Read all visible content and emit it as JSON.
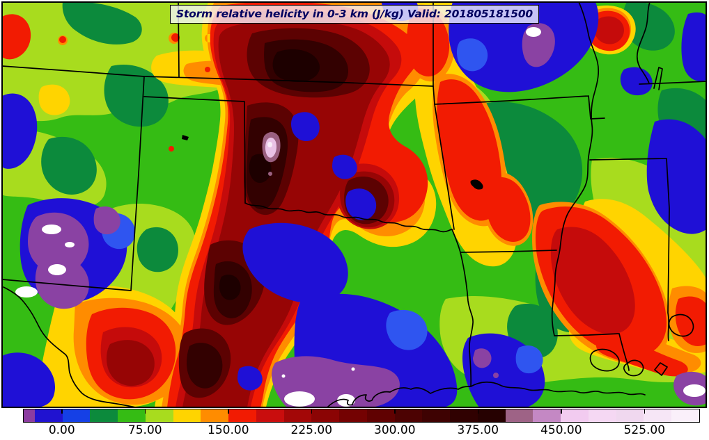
{
  "figure": {
    "title": "Storm relative helicity in 0-3 km (J/kg) Valid: 201805181500",
    "field": "Storm relative helicity in 0-3 km",
    "units": "J/kg",
    "valid_time": "201805181500"
  },
  "palette": {
    "frame": "#000000",
    "border_lines": "#000000",
    "base_green": "#35BC14",
    "ygreen": "#A8DC1E",
    "dkgreen": "#0C8A3C",
    "yellow": "#FFD400",
    "orange": "#FF8C00",
    "red": "#F21B02",
    "red_dark1": "#C50B0B",
    "red_dark2": "#970505",
    "red_dark3": "#5C0202",
    "red_dark4": "#330101",
    "red_dark5": "#1D0000",
    "navy": "#1F10D6",
    "royal": "#2F55F0",
    "purple": "#8A42A3",
    "mauve": "#9A6080",
    "pink": "#E9C2E6",
    "pale_pink": "#F8ECF8",
    "white": "#FFFFFF",
    "lake_black": "#000000",
    "title_text": "#00005f",
    "title_bg": "rgba(246,247,255,0.78)"
  },
  "chart_data": {
    "type": "heatmap",
    "title": "Storm relative helicity in 0-3 km (J/kg) Valid: 201805181500",
    "units": "J/kg",
    "valid": "201805181500",
    "projection_region": "South-central United States (NM, CO, KS, MO, OK, AR, TX, LA, MS, TN)",
    "grid": false,
    "colorbar": {
      "orientation": "horizontal",
      "min": -35,
      "max": 575,
      "tick_values": [
        0,
        75,
        150,
        225,
        300,
        375,
        450,
        525
      ],
      "tick_labels": [
        "0.00",
        "75.00",
        "150.00",
        "225.00",
        "300.00",
        "375.00",
        "450.00",
        "525.00"
      ],
      "segments": [
        {
          "from": -35,
          "to": -25,
          "color": "#8C3CA0"
        },
        {
          "from": -25,
          "to": 0,
          "color": "#2012D0"
        },
        {
          "from": 0,
          "to": 25,
          "color": "#1540E6"
        },
        {
          "from": 25,
          "to": 50,
          "color": "#0C8A3C"
        },
        {
          "from": 50,
          "to": 75,
          "color": "#35BC14"
        },
        {
          "from": 75,
          "to": 100,
          "color": "#A8DC1E"
        },
        {
          "from": 100,
          "to": 125,
          "color": "#FFD400"
        },
        {
          "from": 125,
          "to": 150,
          "color": "#FF8C00"
        },
        {
          "from": 150,
          "to": 175,
          "color": "#F21B02"
        },
        {
          "from": 175,
          "to": 200,
          "color": "#C90D0D"
        },
        {
          "from": 200,
          "to": 225,
          "color": "#A30707"
        },
        {
          "from": 225,
          "to": 250,
          "color": "#8B0404"
        },
        {
          "from": 250,
          "to": 275,
          "color": "#740202"
        },
        {
          "from": 275,
          "to": 300,
          "color": "#600101"
        },
        {
          "from": 300,
          "to": 325,
          "color": "#4C0202"
        },
        {
          "from": 325,
          "to": 350,
          "color": "#3E0202"
        },
        {
          "from": 350,
          "to": 375,
          "color": "#300101"
        },
        {
          "from": 375,
          "to": 400,
          "color": "#260101"
        },
        {
          "from": 400,
          "to": 425,
          "color": "#9E6386"
        },
        {
          "from": 425,
          "to": 450,
          "color": "#C488C4"
        },
        {
          "from": 450,
          "to": 475,
          "color": "#F2CBF0"
        },
        {
          "from": 475,
          "to": 500,
          "color": "#F5D8F3"
        },
        {
          "from": 500,
          "to": 525,
          "color": "#F0D8EF"
        },
        {
          "from": 525,
          "to": 550,
          "color": "#F6E6F6"
        },
        {
          "from": 550,
          "to": 575,
          "color": "#FAF0FA"
        }
      ]
    },
    "features": [
      {
        "name": "central-maximum",
        "description": "Broad 200-400+ J/kg maximum (dark red to near-black) stretching from central Kansas through western/central Oklahoma into north and central Texas, reaching the bottom edge"
      },
      {
        "name": "extreme-spot",
        "description": "Small >450 J/kg pink/white spot embedded in the dark core over west-central Oklahoma near (388,207)"
      },
      {
        "name": "secondary-maximum",
        "description": "Dark red lobe over east-central Oklahoma near (525,285)"
      },
      {
        "name": "diagonal-band",
        "description": "Orange/red 125-200 J/kg band from southeast Kansas across eastern Oklahoma/Arkansas into northeast Louisiana and west Mississippi"
      },
      {
        "name": "missouri-low",
        "description": "Large negative (blue/purple, < 0 J/kg) region over Missouri with small white < -35 patch"
      },
      {
        "name": "new-mexico-low",
        "description": "Blue/purple negative region with white spots over eastern New Mexico"
      },
      {
        "name": "south-texas-low",
        "description": "Purple/white strongly negative region along the bottom edge of south Texas"
      },
      {
        "name": "bottom-left-max",
        "description": "Compact dark red maximum near the Rio Grande around (185,515)"
      },
      {
        "name": "top-right-max",
        "description": "Small dark red maximum in the upper-right (west Kentucky/Tennessee area) near (875,42)"
      },
      {
        "name": "se-louisiana-max",
        "description": "Red streaks along the southeast Louisiana coast"
      }
    ]
  }
}
